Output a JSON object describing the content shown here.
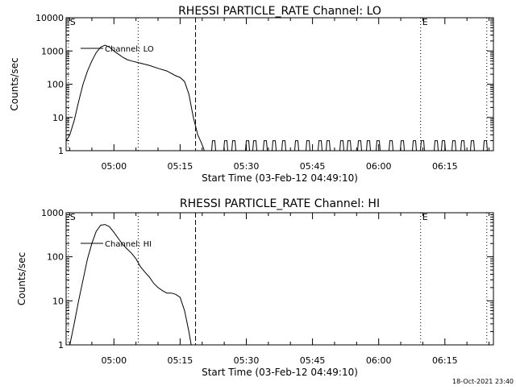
{
  "chart_data": [
    {
      "type": "line",
      "title": "RHESSI PARTICLE_RATE Channel: LO",
      "xlabel": "Start Time (03-Feb-12 04:49:10)",
      "ylabel": "Counts/sec",
      "yscale": "log",
      "ylim": [
        1,
        10000
      ],
      "xlim": [
        "04:49:10",
        "06:26:00"
      ],
      "x_ticks": [
        "05:00",
        "05:15",
        "05:30",
        "05:45",
        "06:00",
        "06:15"
      ],
      "y_ticks": [
        "1",
        "10",
        "100",
        "1000",
        "10000"
      ],
      "legend": {
        "position": "top-left",
        "entries": [
          "Channel: LO"
        ]
      },
      "markers": [
        {
          "time": "04:49:40",
          "label": "S",
          "style": "dotted"
        },
        {
          "time": "05:05:30",
          "label": "",
          "style": "dotted"
        },
        {
          "time": "05:18:30",
          "label": "",
          "style": "dashed"
        },
        {
          "time": "06:09:30",
          "label": "E",
          "style": "dotted"
        },
        {
          "time": "06:24:30",
          "label": "",
          "style": "dotted"
        }
      ],
      "series": [
        {
          "name": "Channel: LO",
          "x": [
            "04:49:10",
            "04:50:00",
            "04:51:00",
            "04:52:00",
            "04:53:00",
            "04:54:00",
            "04:55:00",
            "04:56:00",
            "04:57:00",
            "04:58:00",
            "04:59:00",
            "05:00:00",
            "05:01:00",
            "05:02:00",
            "05:03:00",
            "05:04:00",
            "05:06:00",
            "05:08:00",
            "05:10:00",
            "05:12:00",
            "05:14:00",
            "05:15:00",
            "05:16:00",
            "05:17:00",
            "05:18:00",
            "05:19:00",
            "05:20:00",
            "05:20:30"
          ],
          "values": [
            2,
            3,
            8,
            30,
            100,
            250,
            500,
            900,
            1300,
            1500,
            1300,
            1000,
            800,
            650,
            550,
            500,
            430,
            370,
            300,
            250,
            180,
            160,
            120,
            50,
            10,
            3,
            1.5,
            1
          ]
        }
      ]
    },
    {
      "type": "line",
      "title": "RHESSI PARTICLE_RATE Channel: HI",
      "xlabel": "Start Time (03-Feb-12 04:49:10)",
      "ylabel": "Counts/sec",
      "yscale": "log",
      "ylim": [
        1,
        1000
      ],
      "xlim": [
        "04:49:10",
        "06:26:00"
      ],
      "x_ticks": [
        "05:00",
        "05:15",
        "05:30",
        "05:45",
        "06:00",
        "06:15"
      ],
      "y_ticks": [
        "1",
        "10",
        "100",
        "1000"
      ],
      "legend": {
        "position": "top-left",
        "entries": [
          "Channel: HI"
        ]
      },
      "markers": [
        {
          "time": "04:49:40",
          "label": "S",
          "style": "dotted"
        },
        {
          "time": "05:05:30",
          "label": "",
          "style": "dotted"
        },
        {
          "time": "05:18:30",
          "label": "",
          "style": "dashed"
        },
        {
          "time": "06:09:30",
          "label": "E",
          "style": "dotted"
        },
        {
          "time": "06:24:30",
          "label": "",
          "style": "dotted"
        }
      ],
      "series": [
        {
          "name": "Channel: HI",
          "x": [
            "04:50:00",
            "04:51:00",
            "04:52:00",
            "04:53:00",
            "04:54:00",
            "04:55:00",
            "04:56:00",
            "04:57:00",
            "04:58:00",
            "04:59:00",
            "05:00:00",
            "05:01:00",
            "05:02:00",
            "05:03:00",
            "05:04:00",
            "05:05:00",
            "05:06:00",
            "05:07:00",
            "05:08:00",
            "05:09:00",
            "05:10:00",
            "05:11:00",
            "05:12:00",
            "05:13:00",
            "05:14:00",
            "05:15:00",
            "05:16:00",
            "05:17:00",
            "05:17:30"
          ],
          "values": [
            1,
            3,
            10,
            30,
            90,
            200,
            380,
            520,
            540,
            480,
            360,
            260,
            190,
            150,
            120,
            90,
            60,
            45,
            35,
            25,
            20,
            17,
            15,
            15,
            14,
            12,
            6,
            2,
            1
          ]
        }
      ]
    }
  ],
  "timestamp": "18-Oct-2021 23:40"
}
